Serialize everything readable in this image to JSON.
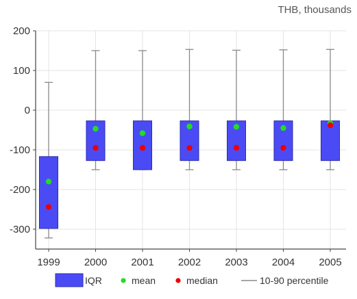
{
  "chart_data": {
    "type": "boxplot",
    "unit_label": "THB, thousands",
    "categories": [
      "1999",
      "2000",
      "2001",
      "2002",
      "2003",
      "2004",
      "2005"
    ],
    "ylim": [
      -350,
      200
    ],
    "yticks": [
      200,
      100,
      0,
      -100,
      -200,
      -300
    ],
    "grid": true,
    "boxes": [
      {
        "category": "1999",
        "p10": -322,
        "q1": -298,
        "q3": -117,
        "p90": 70,
        "mean": -180,
        "median": -244
      },
      {
        "category": "2000",
        "p10": -150,
        "q1": -127,
        "q3": -27,
        "p90": 150,
        "mean": -47,
        "median": -95
      },
      {
        "category": "2001",
        "p10": -150,
        "q1": -150,
        "q3": -27,
        "p90": 150,
        "mean": -58,
        "median": -95
      },
      {
        "category": "2002",
        "p10": -150,
        "q1": -127,
        "q3": -27,
        "p90": 153,
        "mean": -41,
        "median": -95
      },
      {
        "category": "2003",
        "p10": -150,
        "q1": -127,
        "q3": -27,
        "p90": 151,
        "mean": -42,
        "median": -95
      },
      {
        "category": "2004",
        "p10": -150,
        "q1": -127,
        "q3": -27,
        "p90": 152,
        "mean": -45,
        "median": -95
      },
      {
        "category": "2005",
        "p10": -150,
        "q1": -127,
        "q3": -27,
        "p90": 153,
        "mean": -33,
        "median": -38
      }
    ],
    "legend": {
      "placement": "bottom",
      "items": [
        {
          "label": "IQR",
          "kind": "box"
        },
        {
          "label": "mean",
          "kind": "dot-mean"
        },
        {
          "label": "median",
          "kind": "dot-median"
        },
        {
          "label": "10-90 percentile",
          "kind": "line"
        }
      ]
    },
    "colors": {
      "box_fill": "#4B4BF5",
      "box_stroke": "#2A2AB0",
      "mean": "#22DD22",
      "median": "#EE0000",
      "whisker": "#888888",
      "grid": "#E3E3E3",
      "axis": "#444444"
    }
  }
}
